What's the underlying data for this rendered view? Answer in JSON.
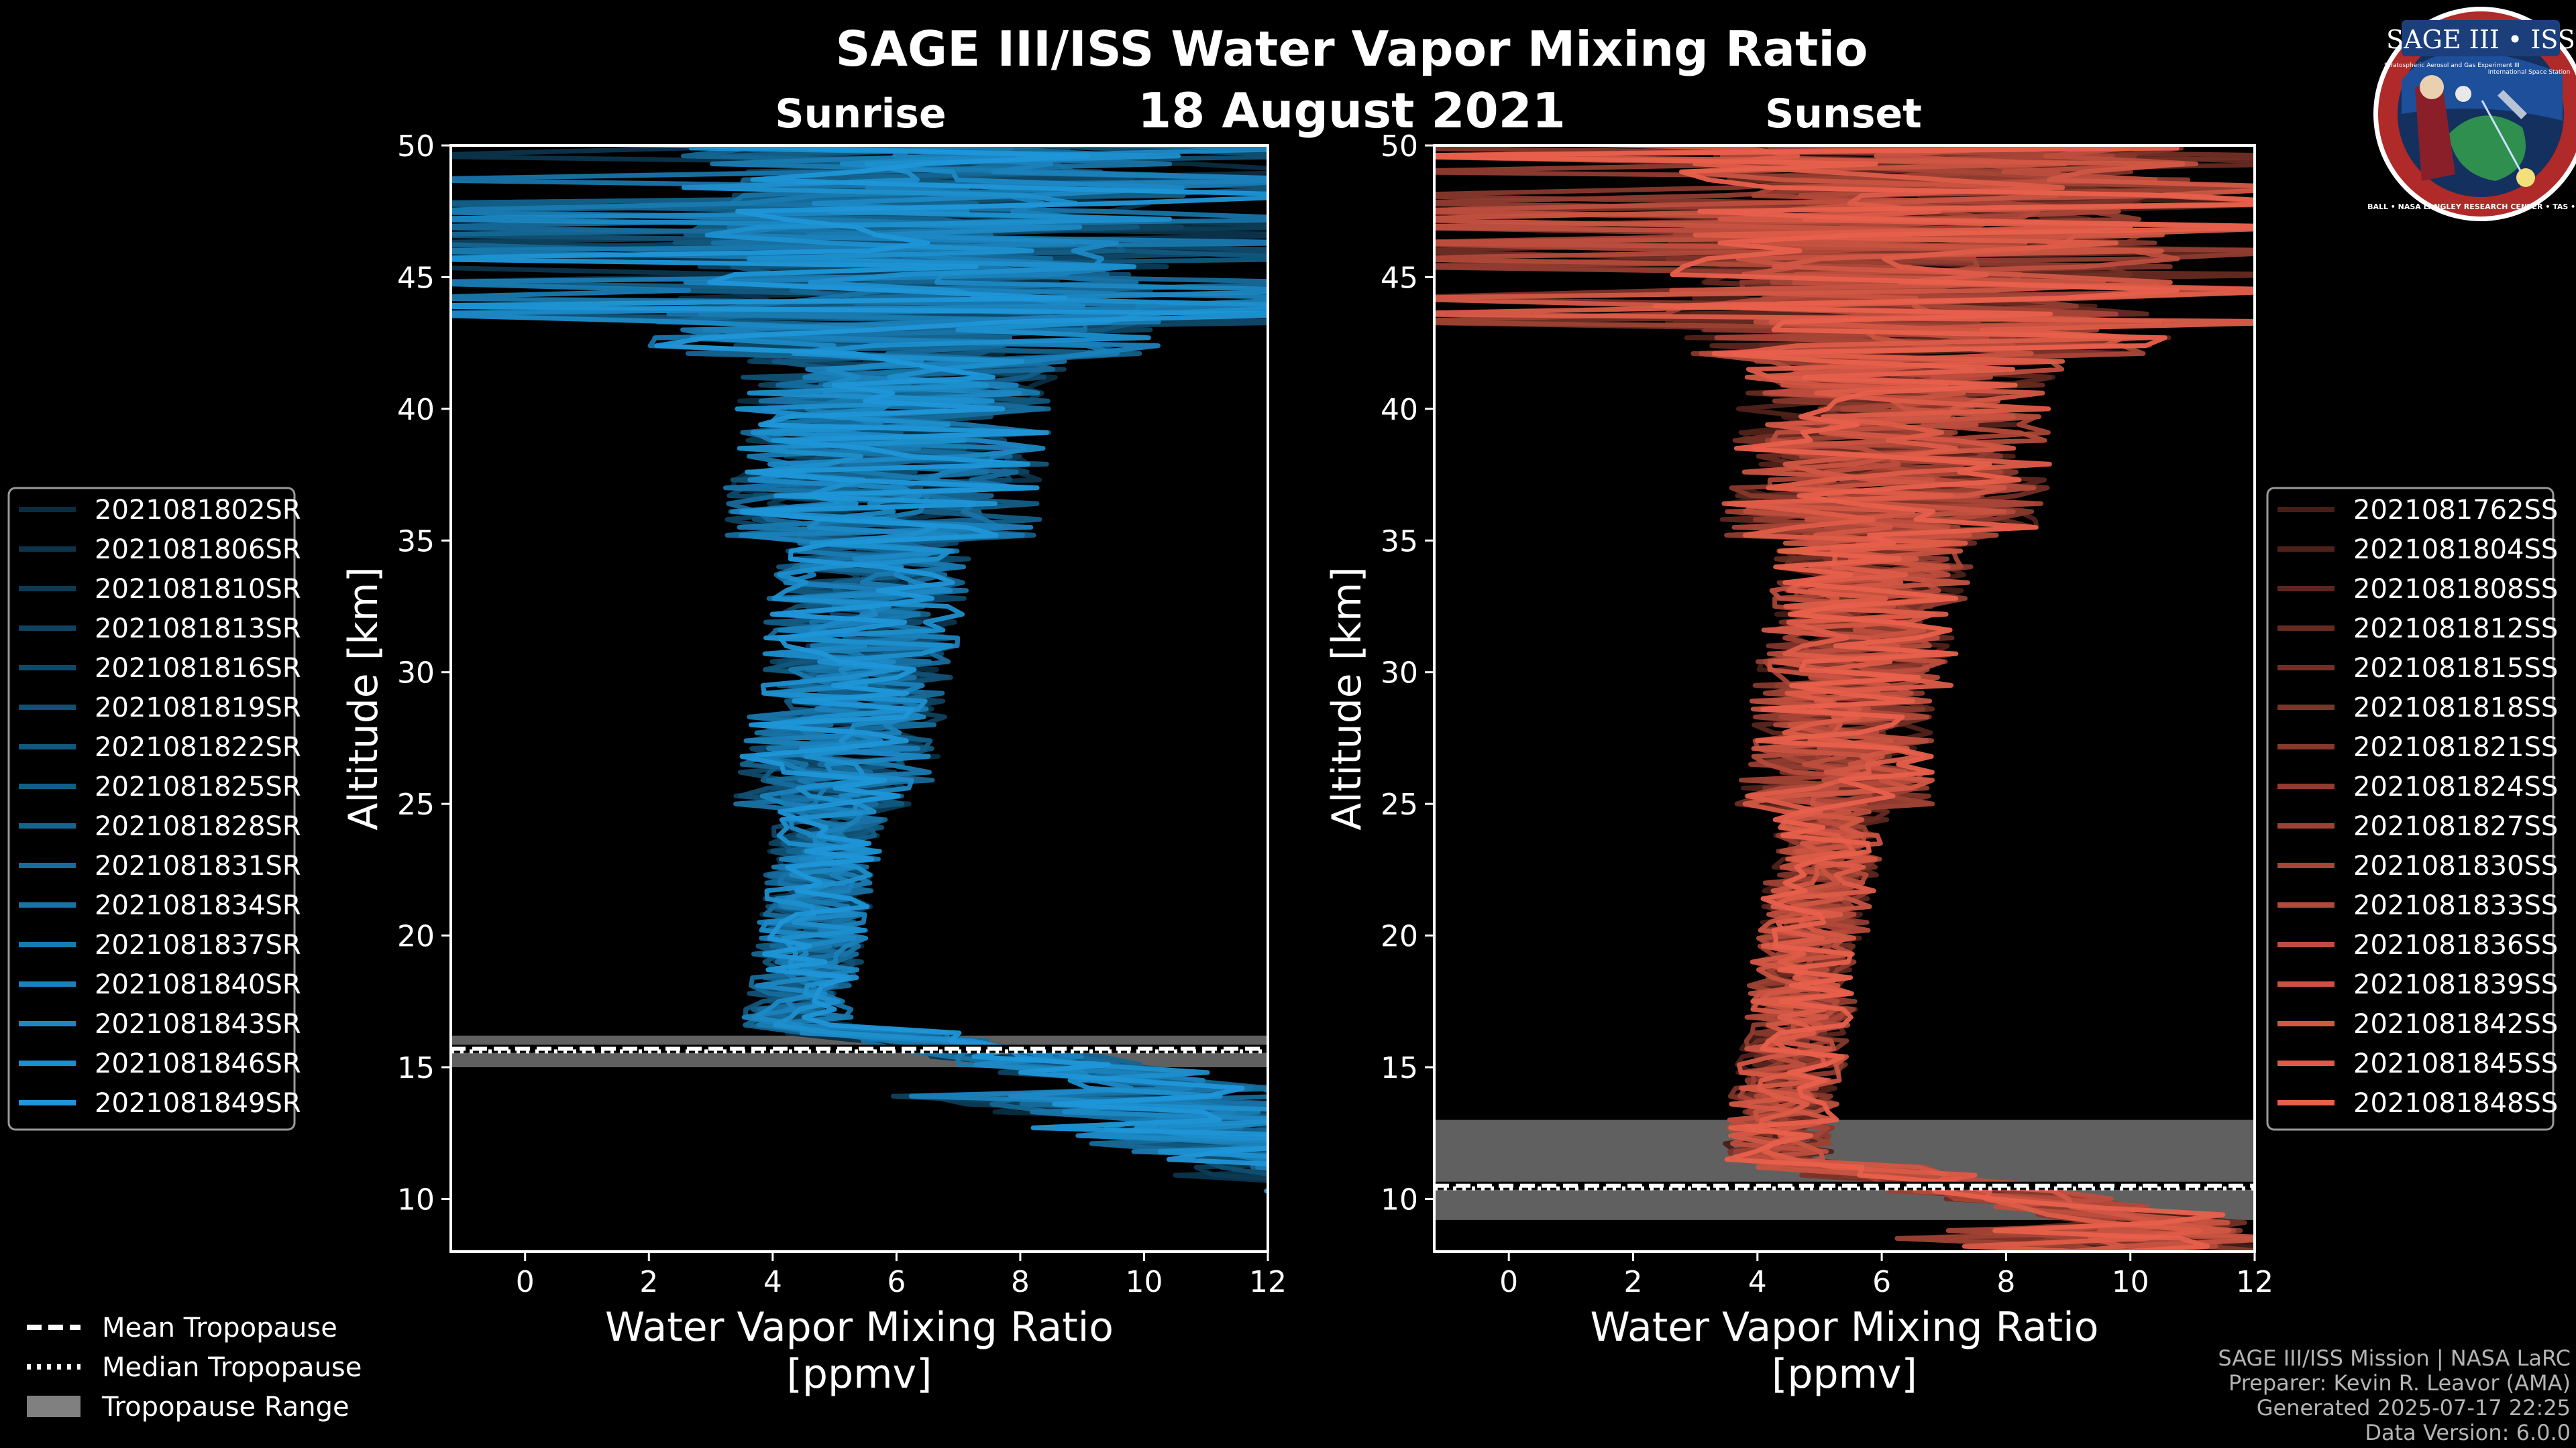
{
  "title": "SAGE III/ISS Water Vapor Mixing Ratio",
  "date": "18 August 2021",
  "logo": {
    "name": "SAGE III • ISS",
    "subtitle": "Stratospheric Aerosol and Gas Experiment III",
    "station": "International Space Station",
    "ring": "BALL • NASA LANGLEY RESEARCH CENTER • TAS • ESA"
  },
  "footer": {
    "mission": "SAGE III/ISS Mission | NASA LaRC",
    "preparer": "Preparer: Kevin R. Leavor (AMA)",
    "generated": "Generated 2025-07-17 22:25",
    "data_version": "Data Version: 6.0.0"
  },
  "tropo_legend": [
    {
      "label": "Mean Tropopause",
      "style": "dashed"
    },
    {
      "label": "Median Tropopause",
      "style": "dotted"
    },
    {
      "label": "Tropopause Range",
      "style": "band"
    }
  ],
  "colors": {
    "sunrise": "#1f96d8",
    "sunset": "#e8604c",
    "tropo_band": "#808080",
    "background": "#000000"
  },
  "chart_data": [
    {
      "type": "line",
      "subtitle": "Sunrise",
      "xlabel": "Water Vapor Mixing Ratio\n[ppmv]",
      "ylabel": "Altitude [km]",
      "xlim": [
        -1.2,
        12
      ],
      "ylim": [
        8,
        50
      ],
      "xticks": [
        0,
        2,
        4,
        6,
        8,
        10,
        12
      ],
      "yticks": [
        10,
        15,
        20,
        25,
        30,
        35,
        40,
        45,
        50
      ],
      "tropopause": {
        "mean": 15.7,
        "median": 15.6,
        "range": [
          15.0,
          16.2
        ]
      },
      "series": [
        {
          "name": "2021081802SR"
        },
        {
          "name": "2021081806SR"
        },
        {
          "name": "2021081810SR"
        },
        {
          "name": "2021081813SR"
        },
        {
          "name": "2021081816SR"
        },
        {
          "name": "2021081819SR"
        },
        {
          "name": "2021081822SR"
        },
        {
          "name": "2021081825SR"
        },
        {
          "name": "2021081828SR"
        },
        {
          "name": "2021081831SR"
        },
        {
          "name": "2021081834SR"
        },
        {
          "name": "2021081837SR"
        },
        {
          "name": "2021081840SR"
        },
        {
          "name": "2021081843SR"
        },
        {
          "name": "2021081846SR"
        },
        {
          "name": "2021081849SR"
        }
      ]
    },
    {
      "type": "line",
      "subtitle": "Sunset",
      "xlabel": "Water Vapor Mixing Ratio\n[ppmv]",
      "ylabel": "Altitude [km]",
      "xlim": [
        -1.2,
        12
      ],
      "ylim": [
        8,
        50
      ],
      "xticks": [
        0,
        2,
        4,
        6,
        8,
        10,
        12
      ],
      "yticks": [
        10,
        15,
        20,
        25,
        30,
        35,
        40,
        45,
        50
      ],
      "tropopause": {
        "mean": 10.5,
        "median": 10.4,
        "range": [
          9.2,
          13.0
        ]
      },
      "series": [
        {
          "name": "2021081762SS"
        },
        {
          "name": "2021081804SS"
        },
        {
          "name": "2021081808SS"
        },
        {
          "name": "2021081812SS"
        },
        {
          "name": "2021081815SS"
        },
        {
          "name": "2021081818SS"
        },
        {
          "name": "2021081821SS"
        },
        {
          "name": "2021081824SS"
        },
        {
          "name": "2021081827SS"
        },
        {
          "name": "2021081830SS"
        },
        {
          "name": "2021081833SS"
        },
        {
          "name": "2021081836SS"
        },
        {
          "name": "2021081839SS"
        },
        {
          "name": "2021081842SS"
        },
        {
          "name": "2021081845SS"
        },
        {
          "name": "2021081848SS"
        }
      ]
    }
  ]
}
